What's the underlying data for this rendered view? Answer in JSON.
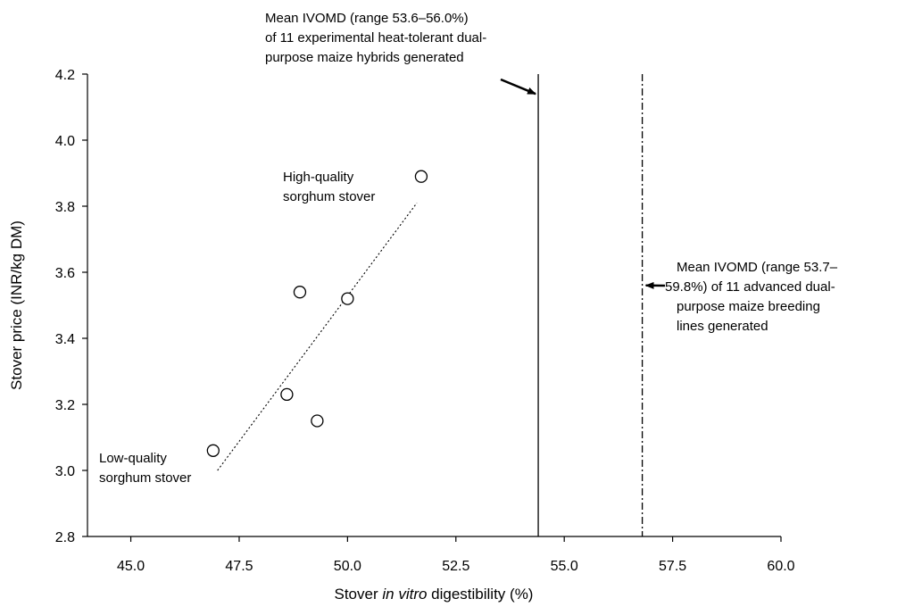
{
  "chart_data": {
    "type": "scatter",
    "title": "",
    "xlabel": {
      "before": "Stover ",
      "italic": "in vitro",
      "after": " digestibility (%)"
    },
    "ylabel": "Stover price (INR/kg DM)",
    "xlim": [
      44.0,
      60.0
    ],
    "ylim": [
      2.8,
      4.2
    ],
    "x_ticks": [
      45.0,
      47.5,
      50.0,
      52.5,
      55.0,
      57.5,
      60.0
    ],
    "x_tick_labels": [
      "45.0",
      "47.5",
      "50.0",
      "52.5",
      "55.0",
      "57.5",
      "60.0"
    ],
    "y_ticks": [
      2.8,
      3.0,
      3.2,
      3.4,
      3.6,
      3.8,
      4.0,
      4.2
    ],
    "y_tick_labels": [
      "2.8",
      "3.0",
      "3.2",
      "3.4",
      "3.6",
      "3.8",
      "4.0",
      "4.2"
    ],
    "grid": false,
    "legend": "none",
    "series": [
      {
        "marker": "open-circle",
        "points": [
          {
            "x": 46.9,
            "y": 3.06
          },
          {
            "x": 48.6,
            "y": 3.23
          },
          {
            "x": 48.9,
            "y": 3.54
          },
          {
            "x": 49.3,
            "y": 3.15
          },
          {
            "x": 50.0,
            "y": 3.52
          },
          {
            "x": 51.7,
            "y": 3.89
          }
        ]
      }
    ],
    "trendline": {
      "style": "dotted",
      "x": [
        47.0,
        51.6
      ],
      "y": [
        3.0,
        3.81
      ]
    },
    "reference_lines": [
      {
        "x": 54.4,
        "style": "solid"
      },
      {
        "x": 56.8,
        "style": "dash-dot"
      }
    ],
    "annotations": [
      {
        "lines": [
          "Mean IVOMD (range 53.6–56.0%)",
          "of 11 experimental heat-tolerant dual-",
          "purpose maize hybrids generated"
        ],
        "arrow_to": {
          "x": 54.4,
          "y": 4.14
        }
      },
      {
        "lines": [
          "Mean IVOMD (range 53.7–",
          "59.8%) of 11 advanced dual-",
          "purpose maize breeding",
          "lines generated"
        ],
        "arrow_to": {
          "x": 56.8,
          "y": 3.56
        }
      },
      {
        "lines": [
          "High-quality",
          "sorghum stover"
        ]
      },
      {
        "lines": [
          "Low-quality",
          "sorghum stover"
        ]
      }
    ]
  }
}
